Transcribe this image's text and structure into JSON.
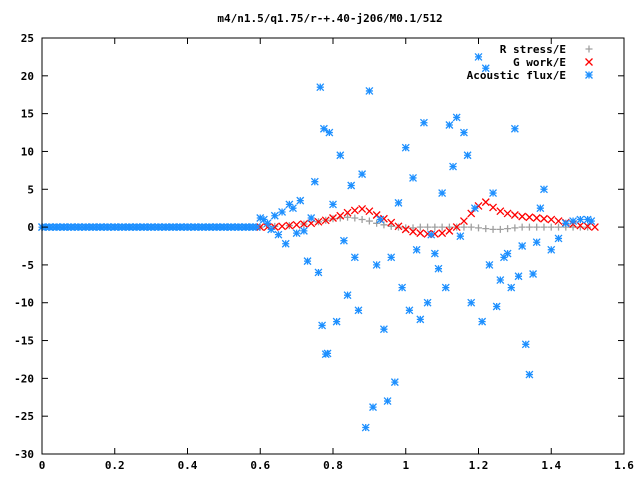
{
  "chart_data": {
    "type": "scatter",
    "title": "m4/n1.5/q1.75/r-+.40-j206/M0.1/512",
    "xlabel": "",
    "ylabel": "",
    "xlim": [
      0,
      1.6
    ],
    "ylim": [
      -30,
      25
    ],
    "xticks": [
      "0",
      "0.2",
      "0.4",
      "0.6",
      "0.8",
      "1",
      "1.2",
      "1.4",
      "1.6"
    ],
    "yticks": [
      "25",
      "20",
      "15",
      "10",
      "5",
      "0",
      "-5",
      "-10",
      "-15",
      "-20",
      "-25",
      "-30"
    ],
    "legend_position": "top-right",
    "grid": false,
    "series": [
      {
        "name": "R stress/E",
        "marker": "plus",
        "color": "#a0a0a0",
        "x": [
          0.6,
          0.64,
          0.68,
          0.72,
          0.76,
          0.78,
          0.8,
          0.82,
          0.84,
          0.86,
          0.88,
          0.9,
          0.92,
          0.94,
          0.96,
          0.98,
          1.0,
          1.02,
          1.04,
          1.06,
          1.08,
          1.1,
          1.12,
          1.14,
          1.16,
          1.18,
          1.2,
          1.22,
          1.24,
          1.26,
          1.28,
          1.3,
          1.32,
          1.34,
          1.36,
          1.38,
          1.4,
          1.42,
          1.44,
          1.46,
          1.48,
          1.5
        ],
        "y": [
          0,
          0.1,
          0.2,
          0.4,
          0.7,
          0.9,
          1.1,
          1.2,
          1.3,
          1.2,
          1.0,
          0.8,
          0.5,
          0.3,
          0.1,
          0,
          -0.1,
          -0.1,
          0,
          0,
          0,
          0,
          0,
          0,
          0,
          0,
          -0.1,
          -0.2,
          -0.3,
          -0.3,
          -0.2,
          -0.1,
          0,
          0,
          0,
          0,
          0,
          0,
          0,
          0,
          0,
          0
        ]
      },
      {
        "name": "G work/E",
        "marker": "cross",
        "color": "#ff0000",
        "x": [
          0.6,
          0.62,
          0.64,
          0.66,
          0.68,
          0.7,
          0.72,
          0.74,
          0.76,
          0.78,
          0.8,
          0.82,
          0.84,
          0.86,
          0.88,
          0.9,
          0.92,
          0.94,
          0.96,
          0.98,
          1.0,
          1.02,
          1.04,
          1.06,
          1.08,
          1.1,
          1.12,
          1.14,
          1.16,
          1.18,
          1.2,
          1.22,
          1.24,
          1.26,
          1.28,
          1.3,
          1.32,
          1.34,
          1.36,
          1.38,
          1.4,
          1.42,
          1.44,
          1.46,
          1.48,
          1.5,
          1.52
        ],
        "y": [
          0,
          0,
          0,
          0.1,
          0.2,
          0.3,
          0.4,
          0.5,
          0.7,
          0.9,
          1.2,
          1.5,
          1.9,
          2.2,
          2.4,
          2.1,
          1.6,
          1.1,
          0.6,
          0.1,
          -0.3,
          -0.6,
          -0.8,
          -0.9,
          -0.9,
          -0.8,
          -0.5,
          0,
          0.8,
          1.8,
          2.8,
          3.3,
          2.6,
          2.1,
          1.8,
          1.6,
          1.4,
          1.3,
          1.2,
          1.1,
          1.0,
          0.8,
          0.6,
          0.4,
          0.2,
          0.1,
          0
        ]
      },
      {
        "name": "Acoustic flux/E",
        "marker": "star",
        "color": "#1e90ff",
        "x": [
          0.0,
          0.02,
          0.04,
          0.06,
          0.08,
          0.1,
          0.12,
          0.14,
          0.16,
          0.18,
          0.2,
          0.22,
          0.24,
          0.26,
          0.28,
          0.3,
          0.32,
          0.34,
          0.36,
          0.38,
          0.4,
          0.42,
          0.44,
          0.46,
          0.48,
          0.5,
          0.52,
          0.54,
          0.56,
          0.58,
          0.6,
          0.61,
          0.62,
          0.63,
          0.64,
          0.65,
          0.66,
          0.67,
          0.68,
          0.69,
          0.7,
          0.71,
          0.72,
          0.73,
          0.74,
          0.75,
          0.76,
          0.765,
          0.77,
          0.775,
          0.78,
          0.785,
          0.79,
          0.8,
          0.81,
          0.82,
          0.83,
          0.84,
          0.85,
          0.86,
          0.87,
          0.88,
          0.89,
          0.9,
          0.91,
          0.92,
          0.93,
          0.94,
          0.95,
          0.96,
          0.97,
          0.98,
          0.99,
          1.0,
          1.01,
          1.02,
          1.03,
          1.04,
          1.05,
          1.06,
          1.07,
          1.08,
          1.09,
          1.1,
          1.11,
          1.12,
          1.13,
          1.14,
          1.15,
          1.16,
          1.17,
          1.18,
          1.19,
          1.2,
          1.21,
          1.22,
          1.23,
          1.24,
          1.25,
          1.26,
          1.27,
          1.28,
          1.29,
          1.3,
          1.31,
          1.32,
          1.33,
          1.34,
          1.35,
          1.36,
          1.37,
          1.38,
          1.4,
          1.42,
          1.44,
          1.46,
          1.48,
          1.5,
          1.51
        ],
        "y": [
          0,
          0,
          0,
          0,
          0,
          0,
          0,
          0,
          0,
          0,
          0,
          0,
          0,
          0,
          0,
          0,
          0,
          0,
          0,
          0,
          0,
          0,
          0,
          0,
          0,
          0,
          0,
          0,
          0,
          0,
          1.2,
          1.0,
          0.5,
          -0.3,
          1.5,
          -1.0,
          2.0,
          -2.2,
          3.0,
          2.5,
          -0.8,
          3.5,
          -0.5,
          -4.5,
          1.2,
          6.0,
          -6.0,
          18.5,
          -13.0,
          13.0,
          -16.8,
          -16.7,
          12.5,
          3.0,
          -12.5,
          9.5,
          -1.8,
          -9.0,
          5.5,
          -4.0,
          -11.0,
          7.0,
          -26.5,
          18.0,
          -23.8,
          -5.0,
          1.0,
          -13.5,
          -23.0,
          -4.0,
          -20.5,
          3.2,
          -8.0,
          10.5,
          -11.0,
          6.5,
          -3.0,
          -12.2,
          13.8,
          -10.0,
          -1.0,
          -3.5,
          -5.5,
          4.5,
          -8.0,
          13.5,
          8.0,
          14.5,
          -1.2,
          12.5,
          9.5,
          -10.0,
          2.5,
          22.5,
          -12.5,
          21.0,
          -5.0,
          4.5,
          -10.5,
          -7.0,
          -4.0,
          -3.5,
          -8.0,
          13.0,
          -6.5,
          -2.5,
          -15.5,
          -19.5,
          -6.2,
          -2.0,
          2.5,
          5.0,
          -3.0,
          -1.5,
          0.5,
          0.8,
          1.0,
          1.0,
          0.8
        ]
      }
    ]
  }
}
